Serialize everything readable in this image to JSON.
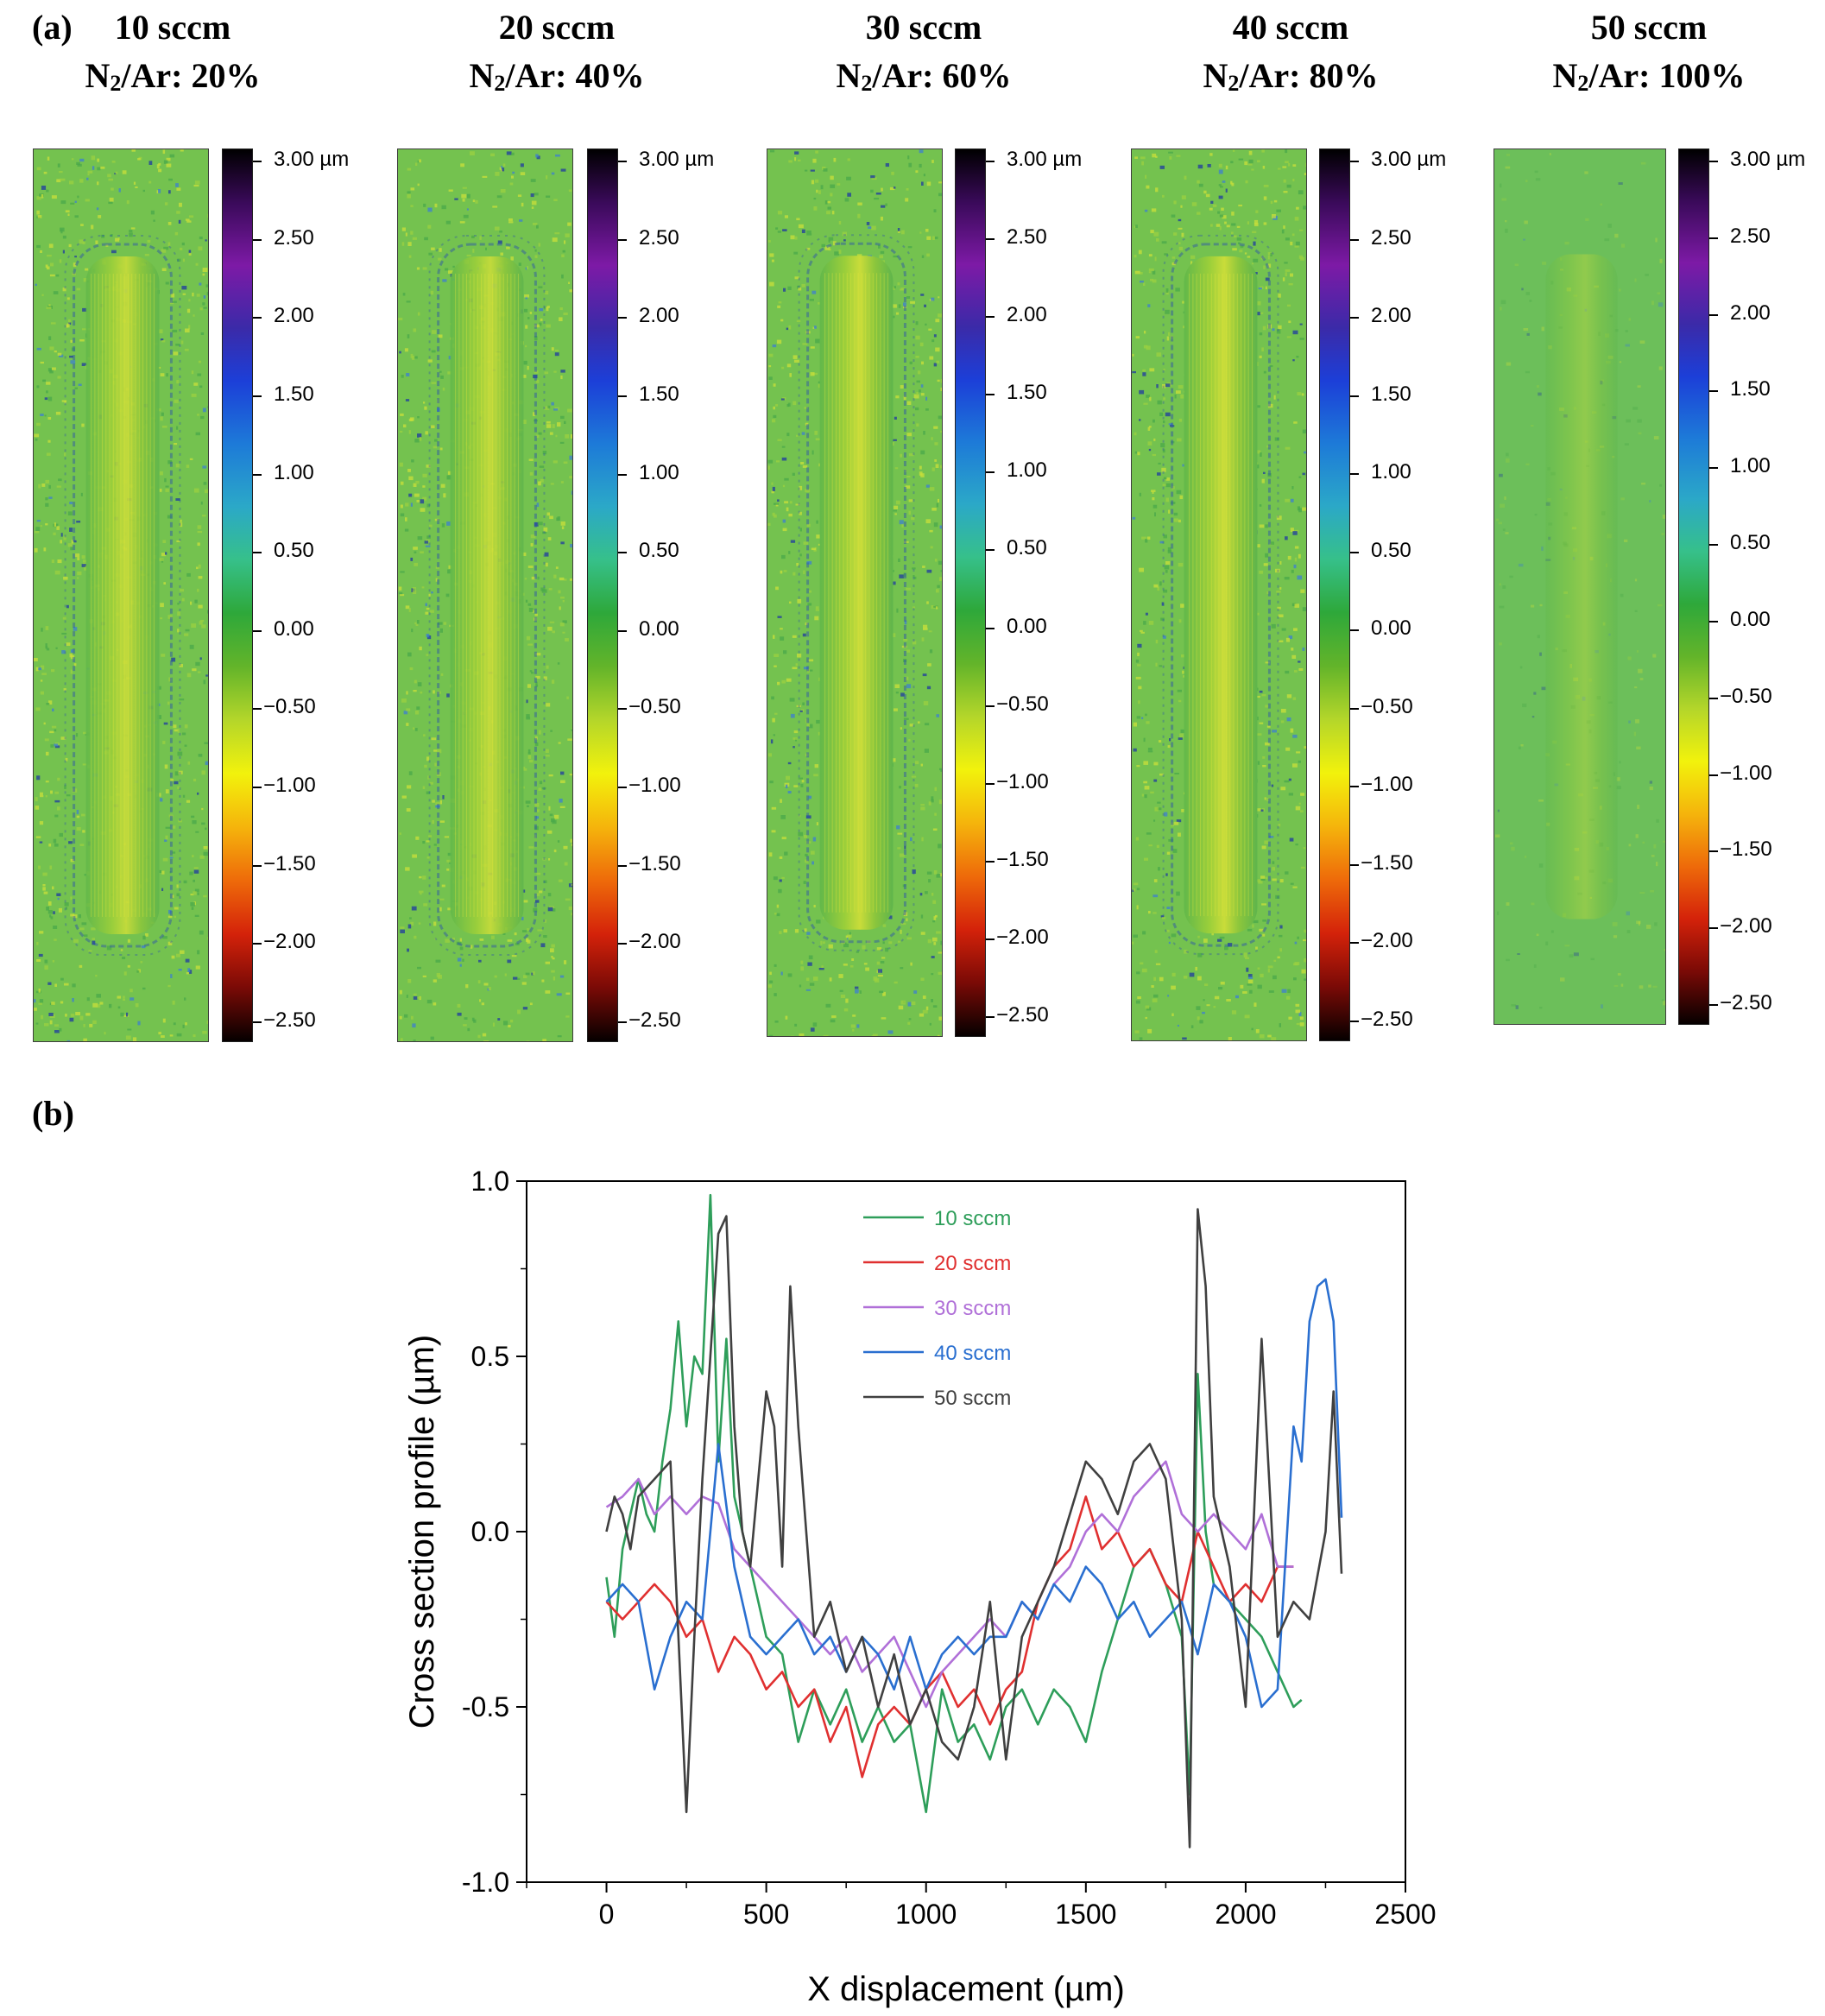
{
  "panel_a": {
    "label": "(a)",
    "colorbar_ticks": [
      "3.00 µm",
      "2.50",
      "2.00",
      "1.50",
      "1.00",
      "0.50",
      "0.00",
      "−0.50",
      "−1.00",
      "−1.50",
      "−2.00",
      "−2.50"
    ],
    "columns": [
      {
        "flow": "10 sccm",
        "ratio_label": "N",
        "ratio_sub": "2",
        "ratio_rest": "/Ar: 20%"
      },
      {
        "flow": "20 sccm",
        "ratio_label": "N",
        "ratio_sub": "2",
        "ratio_rest": "/Ar: 40%"
      },
      {
        "flow": "30 sccm",
        "ratio_label": "N",
        "ratio_sub": "2",
        "ratio_rest": "/Ar: 60%"
      },
      {
        "flow": "40 sccm",
        "ratio_label": "N",
        "ratio_sub": "2",
        "ratio_rest": "/Ar: 80%"
      },
      {
        "flow": "50 sccm",
        "ratio_label": "N",
        "ratio_sub": "2",
        "ratio_rest": "/Ar: 100%"
      }
    ]
  },
  "panel_b": {
    "label": "(b)"
  },
  "chart_data": {
    "type": "line",
    "title": "",
    "xlabel": "X displacement (µm)",
    "ylabel": "Cross section profile (µm)",
    "xlim": [
      -250,
      2500
    ],
    "ylim": [
      -1.0,
      1.0
    ],
    "xticks": [
      0,
      500,
      1000,
      1500,
      2000,
      2500
    ],
    "yticks": [
      -1.0,
      -0.5,
      0.0,
      0.5,
      1.0
    ],
    "ytick_labels": [
      "-1.0",
      "-0.5",
      "0.0",
      "0.5",
      "1.0"
    ],
    "legend_position": "top-center",
    "series": [
      {
        "name": "10 sccm",
        "color": "#2e9e5a",
        "x": [
          0,
          25,
          50,
          75,
          100,
          125,
          150,
          175,
          200,
          225,
          250,
          275,
          300,
          325,
          350,
          375,
          400,
          425,
          450,
          475,
          500,
          550,
          600,
          650,
          700,
          750,
          800,
          850,
          900,
          950,
          1000,
          1050,
          1100,
          1150,
          1200,
          1250,
          1300,
          1350,
          1400,
          1450,
          1500,
          1550,
          1600,
          1650,
          1700,
          1750,
          1800,
          1825,
          1850,
          1875,
          1900,
          1950,
          2000,
          2050,
          2100,
          2150,
          2175
        ],
        "values": [
          -0.13,
          -0.3,
          -0.05,
          0.05,
          0.15,
          0.05,
          0.0,
          0.2,
          0.35,
          0.6,
          0.3,
          0.5,
          0.45,
          0.96,
          0.2,
          0.55,
          0.1,
          0.0,
          -0.1,
          -0.2,
          -0.3,
          -0.35,
          -0.6,
          -0.45,
          -0.55,
          -0.45,
          -0.6,
          -0.5,
          -0.6,
          -0.55,
          -0.8,
          -0.45,
          -0.6,
          -0.55,
          -0.65,
          -0.5,
          -0.45,
          -0.55,
          -0.45,
          -0.5,
          -0.6,
          -0.4,
          -0.25,
          -0.1,
          -0.05,
          -0.15,
          -0.3,
          -0.75,
          0.45,
          0.0,
          -0.15,
          -0.2,
          -0.25,
          -0.3,
          -0.4,
          -0.5,
          -0.48
        ]
      },
      {
        "name": "20 sccm",
        "color": "#e03030",
        "x": [
          0,
          50,
          100,
          150,
          200,
          250,
          300,
          350,
          400,
          450,
          500,
          550,
          600,
          650,
          700,
          750,
          800,
          850,
          900,
          950,
          1000,
          1050,
          1100,
          1150,
          1200,
          1250,
          1300,
          1350,
          1400,
          1450,
          1500,
          1550,
          1600,
          1650,
          1700,
          1750,
          1800,
          1850,
          1900,
          1950,
          2000,
          2050,
          2100,
          2150
        ],
        "values": [
          -0.2,
          -0.25,
          -0.2,
          -0.15,
          -0.2,
          -0.3,
          -0.25,
          -0.4,
          -0.3,
          -0.35,
          -0.45,
          -0.4,
          -0.5,
          -0.45,
          -0.6,
          -0.5,
          -0.7,
          -0.55,
          -0.5,
          -0.55,
          -0.45,
          -0.4,
          -0.5,
          -0.45,
          -0.55,
          -0.45,
          -0.4,
          -0.2,
          -0.1,
          -0.05,
          0.1,
          -0.05,
          0.0,
          -0.1,
          -0.05,
          -0.15,
          -0.2,
          0.0,
          -0.1,
          -0.2,
          -0.15,
          -0.2,
          -0.1,
          -0.1
        ]
      },
      {
        "name": "30 sccm",
        "color": "#b070d8",
        "x": [
          0,
          50,
          100,
          150,
          200,
          250,
          300,
          350,
          400,
          450,
          500,
          550,
          600,
          650,
          700,
          750,
          800,
          850,
          900,
          950,
          1000,
          1050,
          1100,
          1150,
          1200,
          1250,
          1300,
          1350,
          1400,
          1450,
          1500,
          1550,
          1600,
          1650,
          1700,
          1750,
          1800,
          1850,
          1900,
          1950,
          2000,
          2050,
          2100,
          2150
        ],
        "values": [
          0.07,
          0.1,
          0.15,
          0.05,
          0.1,
          0.05,
          0.1,
          0.08,
          -0.05,
          -0.1,
          -0.15,
          -0.2,
          -0.25,
          -0.3,
          -0.35,
          -0.3,
          -0.4,
          -0.35,
          -0.3,
          -0.4,
          -0.5,
          -0.4,
          -0.35,
          -0.3,
          -0.25,
          -0.3,
          -0.2,
          -0.25,
          -0.15,
          -0.1,
          0.0,
          0.05,
          0.0,
          0.1,
          0.15,
          0.2,
          0.05,
          0.0,
          0.05,
          0.0,
          -0.05,
          0.05,
          -0.1,
          -0.1
        ]
      },
      {
        "name": "40 sccm",
        "color": "#2a6fd0",
        "x": [
          0,
          50,
          100,
          150,
          200,
          250,
          300,
          350,
          400,
          450,
          500,
          550,
          600,
          650,
          700,
          750,
          800,
          850,
          900,
          950,
          1000,
          1050,
          1100,
          1150,
          1200,
          1250,
          1300,
          1350,
          1400,
          1450,
          1500,
          1550,
          1600,
          1650,
          1700,
          1750,
          1800,
          1850,
          1900,
          1950,
          2000,
          2050,
          2100,
          2150,
          2175,
          2200,
          2225,
          2250,
          2275,
          2300
        ],
        "values": [
          -0.2,
          -0.15,
          -0.2,
          -0.45,
          -0.3,
          -0.2,
          -0.25,
          0.25,
          -0.1,
          -0.3,
          -0.35,
          -0.3,
          -0.25,
          -0.35,
          -0.3,
          -0.4,
          -0.3,
          -0.35,
          -0.45,
          -0.3,
          -0.45,
          -0.35,
          -0.3,
          -0.35,
          -0.3,
          -0.3,
          -0.2,
          -0.25,
          -0.15,
          -0.2,
          -0.1,
          -0.15,
          -0.25,
          -0.2,
          -0.3,
          -0.25,
          -0.2,
          -0.35,
          -0.15,
          -0.2,
          -0.3,
          -0.5,
          -0.45,
          0.3,
          0.2,
          0.6,
          0.7,
          0.72,
          0.6,
          0.04
        ]
      },
      {
        "name": "50 sccm",
        "color": "#404040",
        "x": [
          0,
          25,
          50,
          75,
          100,
          150,
          200,
          250,
          275,
          300,
          350,
          375,
          400,
          425,
          450,
          500,
          525,
          550,
          575,
          600,
          625,
          650,
          700,
          750,
          800,
          850,
          900,
          950,
          1000,
          1050,
          1100,
          1150,
          1200,
          1250,
          1300,
          1350,
          1400,
          1450,
          1500,
          1550,
          1600,
          1650,
          1700,
          1750,
          1800,
          1825,
          1850,
          1875,
          1900,
          1950,
          2000,
          2050,
          2100,
          2150,
          2200,
          2250,
          2275,
          2300
        ],
        "values": [
          0.0,
          0.1,
          0.05,
          -0.05,
          0.1,
          0.15,
          0.2,
          -0.8,
          -0.3,
          0.15,
          0.85,
          0.9,
          0.3,
          0.0,
          -0.1,
          0.4,
          0.3,
          -0.1,
          0.7,
          0.3,
          0.0,
          -0.3,
          -0.2,
          -0.4,
          -0.3,
          -0.5,
          -0.35,
          -0.55,
          -0.45,
          -0.6,
          -0.65,
          -0.5,
          -0.2,
          -0.65,
          -0.3,
          -0.2,
          -0.1,
          0.05,
          0.2,
          0.15,
          0.05,
          0.2,
          0.25,
          0.15,
          -0.25,
          -0.9,
          0.92,
          0.7,
          0.1,
          -0.1,
          -0.5,
          0.55,
          -0.3,
          -0.2,
          -0.25,
          0.0,
          0.4,
          -0.12
        ]
      }
    ]
  }
}
